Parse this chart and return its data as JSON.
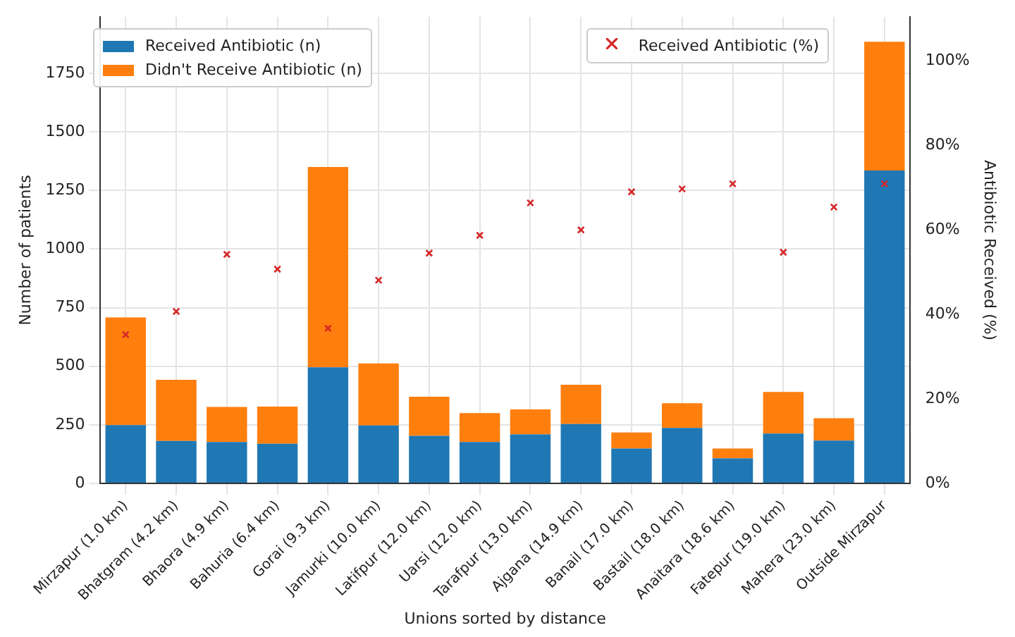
{
  "chart_data": {
    "type": "bar",
    "stacked": true,
    "xlabel": "Unions sorted by distance",
    "ylabel": "Number of patients",
    "y2label": "Antibiotic Received (%)",
    "categories": [
      "Mirzapur (1.0 km)",
      "Bhatgram (4.2 km)",
      "Bhaora (4.9 km)",
      "Bahuria (6.4 km)",
      "Gorai (9.3 km)",
      "Jamurki (10.0 km)",
      "Latifpur (12.0 km)",
      "Uarsi (12.0 km)",
      "Tarafpur (13.0 km)",
      "Ajgana (14.9 km)",
      "Banail (17.0 km)",
      "Bastail (18.0 km)",
      "Anaitara (18.6 km)",
      "Fatepur (19.0 km)",
      "Mahera (23.0 km)",
      "Outside Mirzapur"
    ],
    "series": [
      {
        "name": "Received Antibiotic (n)",
        "color": "#1f77b4",
        "values": [
          249,
          181,
          177,
          169,
          495,
          247,
          203,
          177,
          209,
          253,
          149,
          237,
          107,
          213,
          183,
          1335
        ]
      },
      {
        "name": "Didn't Receive Antibiotic (n)",
        "color": "#ff7f0e",
        "values": [
          459,
          261,
          149,
          159,
          855,
          265,
          167,
          123,
          107,
          168,
          68,
          105,
          42,
          177,
          95,
          549
        ]
      },
      {
        "name": "Received Antibiotic (%)",
        "type": "scatter",
        "axis": "y2",
        "marker": "cross",
        "color": "#d62728",
        "values": [
          35.2,
          40.7,
          54.2,
          50.7,
          36.7,
          48.1,
          54.5,
          58.7,
          66.4,
          60.0,
          69.0,
          69.7,
          70.9,
          54.7,
          65.4,
          70.9
        ]
      }
    ],
    "ylim": [
      0,
      1990
    ],
    "yticks": [
      0,
      250,
      500,
      750,
      1000,
      1250,
      1500,
      1750
    ],
    "y2lim": [
      0,
      110.4
    ],
    "y2ticks": [
      {
        "value": 0,
        "label": "0%"
      },
      {
        "value": 20,
        "label": "20%"
      },
      {
        "value": 40,
        "label": "40%"
      },
      {
        "value": 60,
        "label": "60%"
      },
      {
        "value": 80,
        "label": "80%"
      },
      {
        "value": 100,
        "label": "100%"
      }
    ],
    "grid": true,
    "legend": "top left"
  }
}
